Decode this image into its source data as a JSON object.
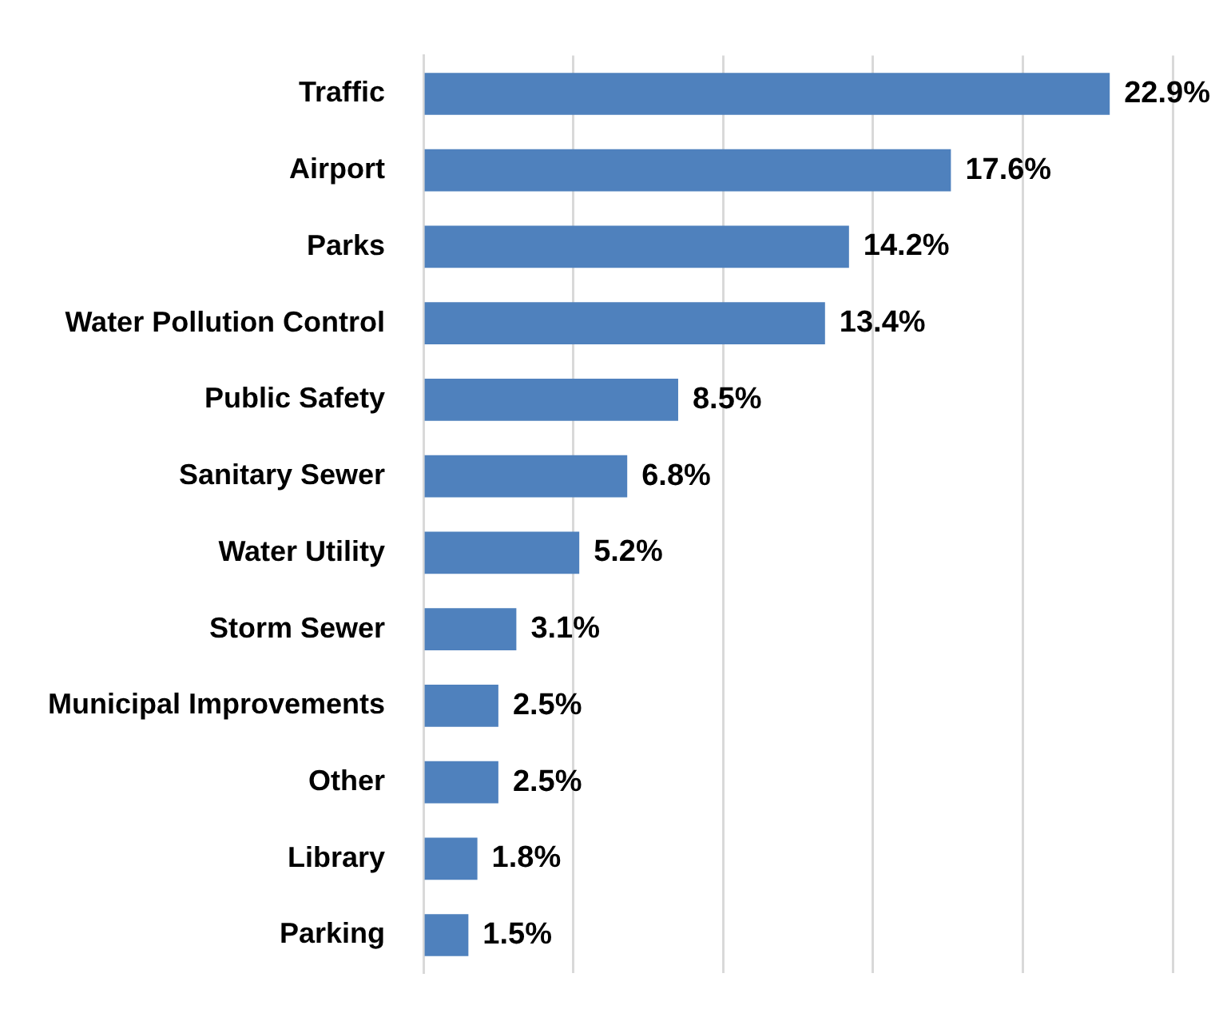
{
  "chart_data": {
    "type": "bar",
    "orientation": "horizontal",
    "categories": [
      "Traffic",
      "Airport",
      "Parks",
      "Water Pollution Control",
      "Public Safety",
      "Sanitary Sewer",
      "Water Utility",
      "Storm Sewer",
      "Municipal Improvements",
      "Other",
      "Library",
      "Parking"
    ],
    "values": [
      22.9,
      17.6,
      14.2,
      13.4,
      8.5,
      6.8,
      5.2,
      3.1,
      2.5,
      2.5,
      1.8,
      1.5
    ],
    "value_labels": [
      "22.9%",
      "17.6%",
      "14.2%",
      "13.4%",
      "8.5%",
      "6.8%",
      "5.2%",
      "3.1%",
      "2.5%",
      "2.5%",
      "1.8%",
      "1.5%"
    ],
    "color": "#4f81bd",
    "xlim": [
      0,
      25
    ],
    "xticks": [
      {
        "value": 0,
        "label": null
      },
      {
        "value": 5,
        "label": null
      },
      {
        "value": 10,
        "label": null
      },
      {
        "value": 15,
        "label": null
      },
      {
        "value": 20,
        "label": null
      },
      {
        "value": 25,
        "label": null
      }
    ],
    "grid": "x",
    "tick_labels": "y"
  }
}
